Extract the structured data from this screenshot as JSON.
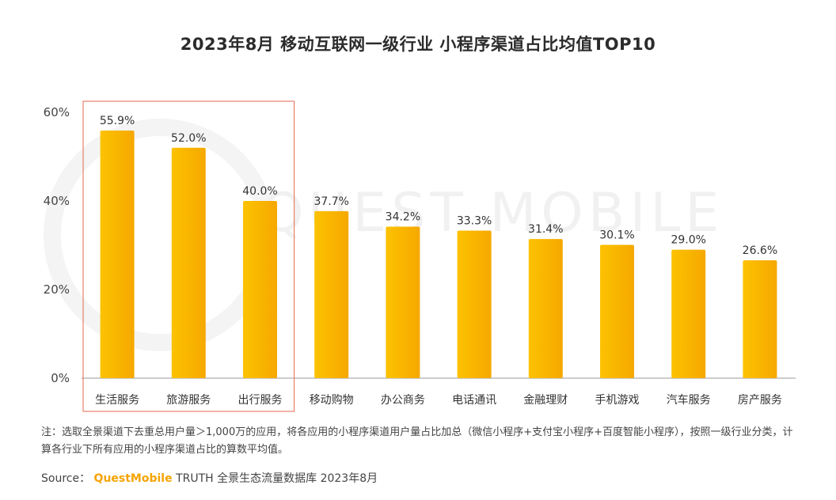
{
  "chart_data": {
    "type": "bar",
    "title": "2023年8月 移动互联网一级行业 小程序渠道占比均值TOP10",
    "categories": [
      "生活服务",
      "旅游服务",
      "出行服务",
      "移动购物",
      "办公商务",
      "电话通讯",
      "金融理财",
      "手机游戏",
      "汽车服务",
      "房产服务"
    ],
    "values": [
      55.9,
      52.0,
      40.0,
      37.7,
      34.2,
      33.3,
      31.4,
      30.1,
      29.0,
      26.6
    ],
    "value_labels": [
      "55.9%",
      "52.0%",
      "40.0%",
      "37.7%",
      "34.2%",
      "33.3%",
      "31.4%",
      "30.1%",
      "29.0%",
      "26.6%"
    ],
    "yticks": [
      0,
      20,
      40,
      60
    ],
    "ytick_labels": [
      "0%",
      "20%",
      "40%",
      "60%"
    ],
    "ylim": [
      0,
      60
    ],
    "xlabel": "",
    "ylabel": "",
    "highlight_count": 3,
    "grid": false,
    "colors": {
      "bar": "#fcc200",
      "bar_edge": "#f6a800",
      "highlight_box": "#e8806a",
      "axis": "#999999"
    }
  },
  "watermark": "QUEST MOBILE",
  "note": "注：选取全景渠道下去重总用户量＞1,000万的应用，将各应用的小程序渠道用户量占比加总（微信小程序+支付宝小程序+百度智能小程序），按照一级行业分类，计算各行业下所有应用的小程序渠道占比的算数平均值。",
  "source": {
    "label": "Source：",
    "brand": "QuestMobile",
    "text": "TRUTH 全景生态流量数据库 2023年8月"
  }
}
